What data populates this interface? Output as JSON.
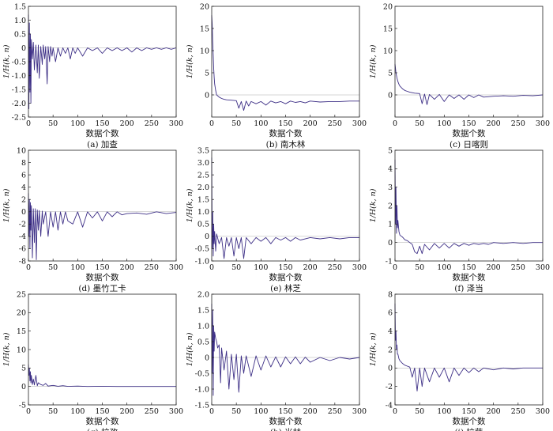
{
  "series_color": "#3d2f86",
  "chart_data": [
    {
      "type": "line",
      "caption": "(a) 加查",
      "xlabel": "数据个数",
      "ylabel": "1/H(k, n)",
      "xlim": [
        0,
        300
      ],
      "ylim": [
        -2.5,
        1.5
      ],
      "xticks": [
        "0",
        "50",
        "100",
        "150",
        "200",
        "250",
        "300"
      ],
      "yticks": [
        "-2.5",
        "-2.0",
        "-1.5",
        "-1.0",
        "-0.5",
        "0",
        "0.5",
        "1.0",
        "1.5"
      ],
      "series": [
        {
          "x": [
            0,
            1,
            2,
            3,
            4,
            5,
            6,
            8,
            10,
            12,
            15,
            18,
            20,
            22,
            25,
            28,
            30,
            33,
            35,
            38,
            40,
            43,
            45,
            48,
            50,
            55,
            60,
            65,
            70,
            75,
            80,
            85,
            90,
            95,
            100,
            110,
            120,
            130,
            140,
            150,
            160,
            170,
            180,
            190,
            200,
            210,
            220,
            230,
            240,
            250,
            260,
            270,
            280,
            290,
            300
          ],
          "y": [
            1.2,
            -2.2,
            0.9,
            -1.6,
            0.5,
            -2.0,
            0.3,
            -0.4,
            0.2,
            -0.8,
            0.1,
            -0.9,
            0.1,
            -1.1,
            0.05,
            -0.6,
            0.1,
            -0.4,
            0.05,
            -1.3,
            0.05,
            -0.5,
            0.05,
            -0.3,
            0.0,
            -0.5,
            0.0,
            -0.3,
            0.0,
            -0.2,
            0.0,
            -0.4,
            0.0,
            -0.2,
            0.0,
            -0.3,
            0.0,
            -0.1,
            0.0,
            -0.2,
            0.0,
            -0.1,
            0.0,
            -0.1,
            0.0,
            -0.15,
            0.0,
            -0.1,
            0.0,
            -0.05,
            0.0,
            -0.05,
            0.0,
            -0.05,
            0.0
          ]
        }
      ]
    },
    {
      "type": "line",
      "caption": "(b) 南木林",
      "xlabel": "数据个数",
      "ylabel": "1/H(k, n)",
      "xlim": [
        0,
        300
      ],
      "ylim": [
        -5,
        20
      ],
      "xticks": [
        "0",
        "50",
        "100",
        "150",
        "200",
        "250",
        "300"
      ],
      "yticks": [
        "0",
        "5",
        "10",
        "15",
        "20"
      ],
      "series": [
        {
          "x": [
            0,
            1,
            2,
            3,
            4,
            5,
            6,
            8,
            10,
            15,
            20,
            25,
            30,
            40,
            50,
            55,
            60,
            65,
            70,
            75,
            80,
            90,
            100,
            110,
            120,
            130,
            140,
            150,
            160,
            170,
            180,
            190,
            200,
            220,
            240,
            260,
            280,
            300
          ],
          "y": [
            18,
            16,
            12,
            9,
            6,
            4,
            2.5,
            1,
            0,
            -0.5,
            -0.8,
            -1,
            -1.1,
            -1.2,
            -1.3,
            -3,
            -1.5,
            -3.5,
            -1.4,
            -2.5,
            -1.5,
            -2,
            -1.5,
            -2.3,
            -1.4,
            -1.8,
            -1.5,
            -2,
            -1.4,
            -1.7,
            -1.5,
            -1.8,
            -1.4,
            -1.6,
            -1.5,
            -1.5,
            -1.4,
            -1.4
          ]
        }
      ]
    },
    {
      "type": "line",
      "caption": "(c) 日喀则",
      "xlabel": "数据个数",
      "ylabel": "1/H(k, n)",
      "xlim": [
        0,
        300
      ],
      "ylim": [
        -5,
        20
      ],
      "xticks": [
        "0",
        "50",
        "100",
        "150",
        "200",
        "250",
        "300"
      ],
      "yticks": [
        "0",
        "5",
        "10",
        "15",
        "20"
      ],
      "series": [
        {
          "x": [
            0,
            2,
            4,
            6,
            8,
            10,
            15,
            20,
            25,
            30,
            40,
            50,
            55,
            60,
            65,
            70,
            80,
            90,
            100,
            110,
            120,
            130,
            140,
            150,
            160,
            170,
            180,
            200,
            220,
            240,
            260,
            280,
            300
          ],
          "y": [
            7,
            5,
            3.8,
            3,
            2.4,
            2,
            1.4,
            1,
            0.8,
            0.6,
            0.4,
            0.3,
            -2,
            0.2,
            -2.2,
            0.1,
            -1,
            0.1,
            -1.5,
            0,
            -0.8,
            0,
            -1,
            0,
            -0.6,
            0,
            -0.5,
            -0.3,
            -0.2,
            -0.3,
            -0.1,
            -0.2,
            0
          ]
        }
      ]
    },
    {
      "type": "line",
      "caption": "(d) 墨竹工卡",
      "xlabel": "数据个数",
      "ylabel": "1/H(k, n)",
      "xlim": [
        0,
        300
      ],
      "ylim": [
        -8,
        10
      ],
      "xticks": [
        "0",
        "50",
        "100",
        "150",
        "200",
        "250",
        "300"
      ],
      "yticks": [
        "-8",
        "-6",
        "-4",
        "-2",
        "0",
        "2",
        "4",
        "6",
        "8",
        "10"
      ],
      "series": [
        {
          "x": [
            0,
            1,
            2,
            3,
            4,
            5,
            6,
            8,
            10,
            12,
            14,
            16,
            18,
            20,
            22,
            25,
            28,
            30,
            35,
            40,
            45,
            50,
            55,
            60,
            65,
            70,
            75,
            80,
            90,
            100,
            110,
            120,
            130,
            140,
            150,
            160,
            170,
            180,
            190,
            200,
            220,
            240,
            260,
            280,
            300
          ],
          "y": [
            3,
            -4,
            2,
            -6,
            1.5,
            -3,
            1,
            -7.5,
            0.5,
            -5,
            0.5,
            -7.8,
            0.3,
            -3,
            0.2,
            -4,
            0.1,
            -2,
            0,
            -4,
            0,
            -2.5,
            0,
            -3,
            0,
            -2,
            0,
            -1.5,
            -2,
            0,
            -2.5,
            0,
            -1,
            0,
            -1.5,
            0,
            -0.8,
            0,
            -0.5,
            -0.3,
            -0.2,
            -0.4,
            0,
            -0.3,
            -0.1
          ]
        }
      ]
    },
    {
      "type": "line",
      "caption": "(e) 林芝",
      "xlabel": "数据个数",
      "ylabel": "1/H(k, n)",
      "xlim": [
        0,
        300
      ],
      "ylim": [
        -1.0,
        3.5
      ],
      "xticks": [
        "0",
        "50",
        "100",
        "150",
        "200",
        "250",
        "300"
      ],
      "yticks": [
        "-1.0",
        "-0.5",
        "0",
        "0.5",
        "1.0",
        "1.5",
        "2.0",
        "2.5",
        "3.0",
        "3.5"
      ],
      "series": [
        {
          "x": [
            0,
            1,
            2,
            3,
            4,
            5,
            6,
            8,
            10,
            15,
            20,
            25,
            30,
            35,
            40,
            45,
            50,
            55,
            60,
            65,
            70,
            80,
            90,
            100,
            110,
            120,
            130,
            140,
            150,
            160,
            170,
            180,
            200,
            220,
            240,
            260,
            280,
            300
          ],
          "y": [
            3.2,
            -0.5,
            1,
            -0.8,
            0.5,
            -0.3,
            0.2,
            -0.6,
            0.1,
            -0.3,
            -0.05,
            -0.9,
            -0.05,
            -0.4,
            -0.05,
            -0.8,
            -0.05,
            -0.5,
            -0.05,
            -0.9,
            -0.05,
            -0.3,
            -0.05,
            -0.2,
            -0.05,
            -0.3,
            -0.05,
            -0.15,
            -0.05,
            -0.2,
            -0.05,
            -0.15,
            -0.05,
            -0.1,
            -0.05,
            -0.1,
            -0.05,
            -0.05
          ]
        }
      ]
    },
    {
      "type": "line",
      "caption": "(f) 泽当",
      "xlabel": "数据个数",
      "ylabel": "1/H(k, n)",
      "xlim": [
        0,
        300
      ],
      "ylim": [
        -1,
        5
      ],
      "xticks": [
        "0",
        "50",
        "100",
        "150",
        "200",
        "250",
        "300"
      ],
      "yticks": [
        "-1",
        "0",
        "1",
        "2",
        "3",
        "4",
        "5"
      ],
      "series": [
        {
          "x": [
            0,
            1,
            2,
            3,
            4,
            5,
            6,
            8,
            10,
            15,
            20,
            25,
            30,
            35,
            40,
            45,
            50,
            55,
            60,
            70,
            80,
            90,
            100,
            110,
            120,
            130,
            140,
            150,
            160,
            170,
            180,
            190,
            200,
            220,
            240,
            260,
            280,
            300
          ],
          "y": [
            4.5,
            1,
            3,
            0.5,
            2,
            0.8,
            1.2,
            0.6,
            0.4,
            0.3,
            0.15,
            0.1,
            0,
            -0.1,
            -0.5,
            -0.6,
            -0.2,
            -0.6,
            -0.1,
            -0.4,
            -0.05,
            -0.3,
            -0.05,
            -0.3,
            -0.05,
            -0.2,
            -0.05,
            -0.15,
            -0.05,
            -0.1,
            -0.05,
            -0.1,
            0,
            -0.05,
            0,
            -0.05,
            0,
            0
          ]
        }
      ]
    },
    {
      "type": "line",
      "caption": "(g) 拉孜",
      "xlabel": "数据个数",
      "ylabel": "1/H(k, n)",
      "xlim": [
        0,
        300
      ],
      "ylim": [
        -5,
        25
      ],
      "xticks": [
        "0",
        "50",
        "100",
        "150",
        "200",
        "250",
        "300"
      ],
      "yticks": [
        "-5",
        "0",
        "5",
        "10",
        "15",
        "20",
        "25"
      ],
      "series": [
        {
          "x": [
            0,
            1,
            2,
            3,
            4,
            5,
            6,
            8,
            10,
            12,
            15,
            18,
            20,
            25,
            30,
            35,
            40,
            50,
            60,
            70,
            80,
            100,
            120,
            150,
            180,
            200,
            250,
            300
          ],
          "y": [
            6,
            3,
            5,
            1.5,
            4,
            1,
            3,
            0.5,
            2,
            0.4,
            3,
            0.2,
            1,
            0.5,
            0.3,
            0.8,
            0.1,
            0.3,
            0.05,
            0.2,
            0.02,
            0.1,
            0,
            0.05,
            0,
            0,
            0,
            0
          ]
        }
      ]
    },
    {
      "type": "line",
      "caption": "(h) 米林",
      "xlabel": "数据个数",
      "ylabel": "1/H(k, n)",
      "xlim": [
        0,
        300
      ],
      "ylim": [
        -1.5,
        2.0
      ],
      "xticks": [
        "0",
        "50",
        "100",
        "150",
        "200",
        "250",
        "300"
      ],
      "yticks": [
        "-1.5",
        "-1.0",
        "-0.5",
        "0",
        "0.5",
        "1.0",
        "1.5",
        "2.0"
      ],
      "series": [
        {
          "x": [
            0,
            1,
            2,
            3,
            4,
            5,
            6,
            8,
            10,
            12,
            15,
            18,
            20,
            25,
            30,
            35,
            40,
            45,
            50,
            55,
            60,
            65,
            70,
            80,
            90,
            100,
            110,
            120,
            130,
            140,
            150,
            160,
            170,
            180,
            190,
            200,
            220,
            240,
            260,
            280,
            300
          ],
          "y": [
            1.7,
            -0.5,
            1.5,
            -1.2,
            1.0,
            0.2,
            0.8,
            0.6,
            0.5,
            0.3,
            0.4,
            -0.8,
            0.3,
            -0.4,
            0.2,
            -1.0,
            0.1,
            -0.7,
            0.1,
            -1.1,
            0.05,
            -0.5,
            0.05,
            -0.6,
            0.05,
            -0.4,
            0.05,
            -0.3,
            0.02,
            -0.3,
            0.02,
            -0.2,
            0.02,
            -0.2,
            0.01,
            -0.15,
            0,
            -0.1,
            0,
            -0.05,
            0
          ]
        }
      ]
    },
    {
      "type": "line",
      "caption": "(i) 拉萨",
      "xlabel": "数据个数",
      "ylabel": "1/H(k, n)",
      "xlim": [
        0,
        300
      ],
      "ylim": [
        -4,
        8
      ],
      "xticks": [
        "0",
        "50",
        "100",
        "150",
        "200",
        "250",
        "300"
      ],
      "yticks": [
        "-4",
        "-2",
        "0",
        "2",
        "4",
        "6",
        "8"
      ],
      "series": [
        {
          "x": [
            0,
            1,
            2,
            3,
            4,
            5,
            6,
            8,
            10,
            15,
            20,
            25,
            30,
            35,
            40,
            45,
            50,
            55,
            60,
            70,
            80,
            90,
            100,
            110,
            120,
            130,
            140,
            150,
            160,
            170,
            180,
            200,
            220,
            240,
            260,
            280,
            300
          ],
          "y": [
            7,
            3,
            4,
            2,
            2.5,
            1.5,
            1.5,
            1,
            0.8,
            0.5,
            0.3,
            0.2,
            0.1,
            -1,
            0,
            -2.5,
            0,
            -2,
            0,
            -1.5,
            0,
            -1,
            0,
            -1.5,
            0,
            -0.8,
            0,
            -0.5,
            0,
            -0.4,
            0,
            -0.2,
            0,
            -0.1,
            0,
            0,
            0
          ]
        }
      ]
    }
  ]
}
